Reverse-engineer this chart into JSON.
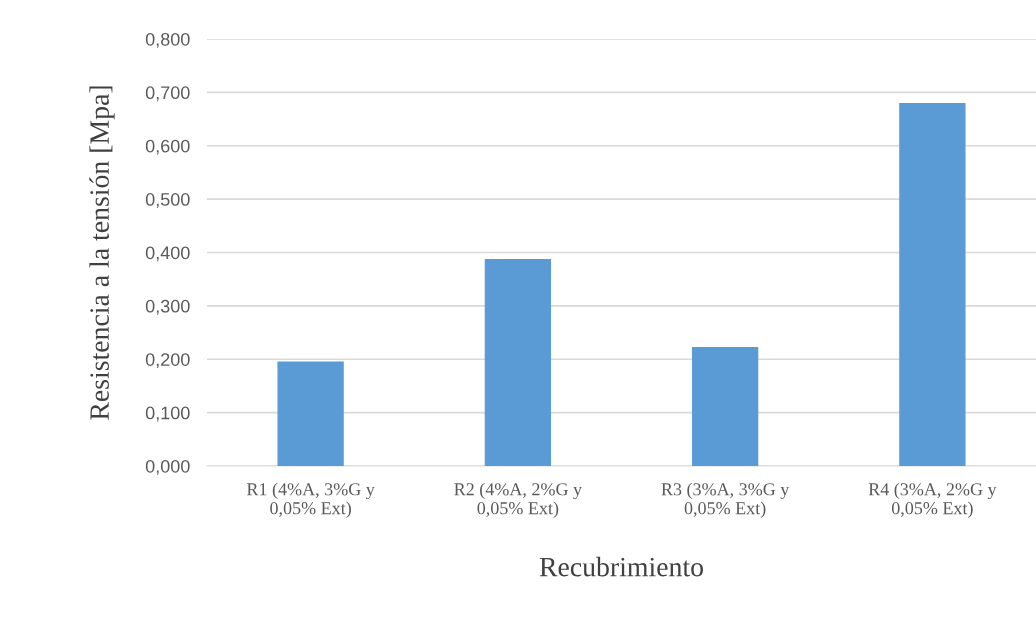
{
  "chart_data": {
    "type": "bar",
    "xlabel": "Recubrimiento",
    "ylabel": "Resistencia a la tensión [Mpa]",
    "categories": [
      "R1 (4%A, 3%G y\n0,05% Ext)",
      "R2 (4%A, 2%G y\n0,05% Ext)",
      "R3 (3%A, 3%G y\n0,05% Ext)",
      "R4 (3%A, 2%G y\n0,05% Ext)"
    ],
    "values": [
      0.196,
      0.388,
      0.223,
      0.68
    ],
    "color": "#5b9bd5",
    "ylim": [
      0,
      0.8
    ],
    "yticks": [
      {
        "value": 0,
        "label": "0,000"
      },
      {
        "value": 0.1,
        "label": "0,100"
      },
      {
        "value": 0.2,
        "label": "0,200"
      },
      {
        "value": 0.3,
        "label": "0,300"
      },
      {
        "value": 0.4,
        "label": "0,400"
      },
      {
        "value": 0.5,
        "label": "0,500"
      },
      {
        "value": 0.6,
        "label": "0,600"
      },
      {
        "value": 0.7,
        "label": "0,700"
      },
      {
        "value": 0.8,
        "label": "0,800"
      }
    ],
    "grid": "y",
    "legend": false
  }
}
